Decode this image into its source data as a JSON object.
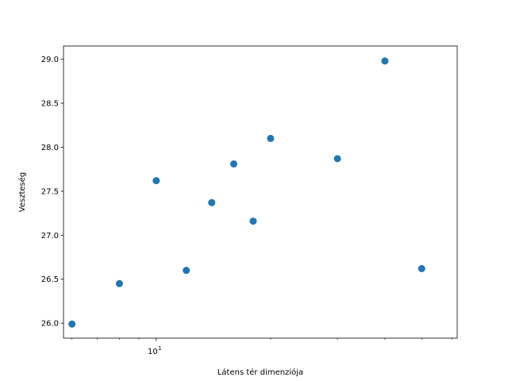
{
  "chart_data": {
    "type": "scatter",
    "xlabel": "Látens tér dimenziója",
    "ylabel": "Veszteség",
    "xscale": "log",
    "xlim": [
      5.7,
      62
    ],
    "ylim": [
      25.83,
      29.15
    ],
    "grid": false,
    "legend": "none",
    "marker_color": "#1f77b4",
    "x_major_ticks": [
      {
        "value": 10,
        "base": "10",
        "exponent": "1"
      }
    ],
    "x_minor_ticks": [
      6,
      7,
      8,
      9,
      20,
      30,
      40,
      50,
      60
    ],
    "y_ticks": [
      {
        "value": 26.0,
        "label": "26.0"
      },
      {
        "value": 26.5,
        "label": "26.5"
      },
      {
        "value": 27.0,
        "label": "27.0"
      },
      {
        "value": 27.5,
        "label": "27.5"
      },
      {
        "value": 28.0,
        "label": "28.0"
      },
      {
        "value": 28.5,
        "label": "28.5"
      },
      {
        "value": 29.0,
        "label": "29.0"
      }
    ],
    "points": [
      {
        "x": 6,
        "y": 25.99
      },
      {
        "x": 8,
        "y": 26.45
      },
      {
        "x": 10,
        "y": 27.62
      },
      {
        "x": 12,
        "y": 26.6
      },
      {
        "x": 14,
        "y": 27.37
      },
      {
        "x": 16,
        "y": 27.81
      },
      {
        "x": 18,
        "y": 27.16
      },
      {
        "x": 20,
        "y": 28.1
      },
      {
        "x": 30,
        "y": 27.87
      },
      {
        "x": 40,
        "y": 28.98
      },
      {
        "x": 50,
        "y": 26.62
      }
    ]
  }
}
